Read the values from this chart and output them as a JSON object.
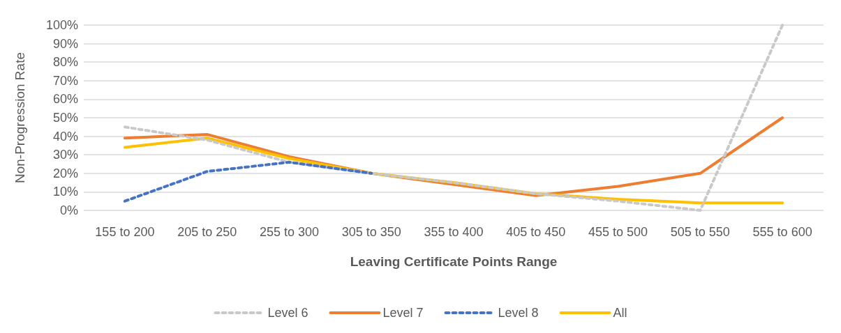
{
  "chart_data": {
    "type": "line",
    "xlabel": "Leaving Certificate Points Range",
    "ylabel": "Non-Progression Rate",
    "categories": [
      "155 to 200",
      "205 to 250",
      "255 to 300",
      "305 to 350",
      "355 to 400",
      "405 to 450",
      "455 to 500",
      "505 to 550",
      "555 to 600"
    ],
    "series": [
      {
        "name": "Level 6",
        "color": "#c9c9c9",
        "line_style": "dashed",
        "values": [
          45,
          38,
          26,
          20,
          15,
          9,
          5,
          0,
          100
        ]
      },
      {
        "name": "Level 7",
        "color": "#ed7d31",
        "line_style": "solid",
        "values": [
          39,
          41,
          29,
          20,
          14,
          8,
          13,
          20,
          50
        ]
      },
      {
        "name": "Level 8",
        "color": "#4472c4",
        "line_style": "dashed",
        "values": [
          5,
          21,
          26,
          20,
          null,
          null,
          null,
          null,
          null
        ]
      },
      {
        "name": "All",
        "color": "#ffc000",
        "line_style": "solid",
        "values": [
          34,
          39,
          28,
          20,
          15,
          9,
          6,
          4,
          4
        ]
      }
    ],
    "ylim": [
      0,
      100
    ],
    "yticks": [
      {
        "value": 0,
        "label": "0%"
      },
      {
        "value": 10,
        "label": "10%"
      },
      {
        "value": 20,
        "label": "20%"
      },
      {
        "value": 30,
        "label": "30%"
      },
      {
        "value": 40,
        "label": "40%"
      },
      {
        "value": 50,
        "label": "50%"
      },
      {
        "value": 60,
        "label": "60%"
      },
      {
        "value": 70,
        "label": "70%"
      },
      {
        "value": 80,
        "label": "80%"
      },
      {
        "value": 90,
        "label": "90%"
      },
      {
        "value": 100,
        "label": "100%"
      }
    ],
    "grid": "y",
    "legend": "bottom",
    "marker": "none"
  }
}
